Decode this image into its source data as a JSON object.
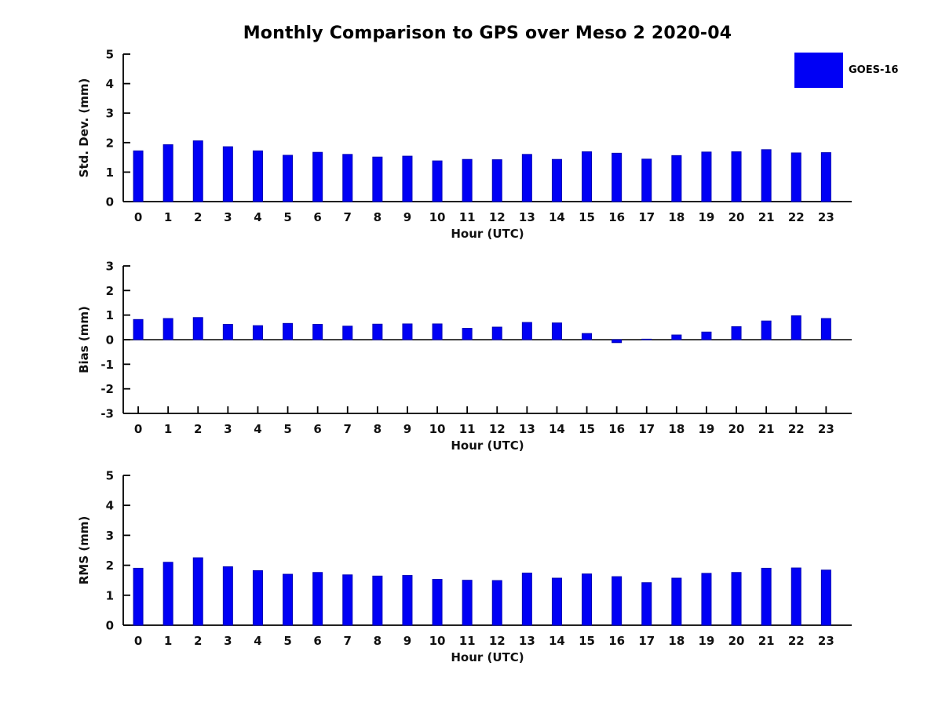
{
  "title": "Monthly Comparison to GPS over Meso 2 2020-04",
  "legend": {
    "label": "GOES-16",
    "swatch_name": "goes16-swatch"
  },
  "colors": {
    "bar_fill": "#0000F5",
    "bar_edge": "#0000B4",
    "axis": "#000000"
  },
  "chart_data": [
    {
      "type": "bar",
      "panel": "std-dev",
      "ylabel": "Std. Dev. (mm)",
      "xlabel": "Hour (UTC)",
      "series_name": "GOES-16",
      "categories": [
        "0",
        "1",
        "2",
        "3",
        "4",
        "5",
        "6",
        "7",
        "8",
        "9",
        "10",
        "11",
        "12",
        "13",
        "14",
        "15",
        "16",
        "17",
        "18",
        "19",
        "20",
        "21",
        "22",
        "23"
      ],
      "values": [
        1.72,
        1.93,
        2.06,
        1.86,
        1.72,
        1.57,
        1.67,
        1.6,
        1.51,
        1.54,
        1.38,
        1.43,
        1.42,
        1.6,
        1.43,
        1.69,
        1.64,
        1.44,
        1.56,
        1.68,
        1.69,
        1.76,
        1.65,
        1.66
      ],
      "ylim": [
        0,
        5
      ],
      "yticks": [
        0,
        1,
        2,
        3,
        4,
        5
      ],
      "grid": false,
      "legend_position": "upper-right-outside"
    },
    {
      "type": "bar",
      "panel": "bias",
      "ylabel": "Bias (mm)",
      "xlabel": "Hour (UTC)",
      "series_name": "GOES-16",
      "categories": [
        "0",
        "1",
        "2",
        "3",
        "4",
        "5",
        "6",
        "7",
        "8",
        "9",
        "10",
        "11",
        "12",
        "13",
        "14",
        "15",
        "16",
        "17",
        "18",
        "19",
        "20",
        "21",
        "22",
        "23"
      ],
      "values": [
        0.82,
        0.86,
        0.9,
        0.62,
        0.57,
        0.66,
        0.62,
        0.55,
        0.63,
        0.64,
        0.64,
        0.46,
        0.51,
        0.7,
        0.68,
        0.25,
        -0.12,
        0.02,
        0.19,
        0.31,
        0.53,
        0.76,
        0.97,
        0.86
      ],
      "ylim": [
        -3,
        3
      ],
      "yticks": [
        -3,
        -2,
        -1,
        0,
        1,
        2,
        3
      ],
      "grid": false,
      "legend_position": "none"
    },
    {
      "type": "bar",
      "panel": "rms",
      "ylabel": "RMS (mm)",
      "xlabel": "Hour (UTC)",
      "series_name": "GOES-16",
      "categories": [
        "0",
        "1",
        "2",
        "3",
        "4",
        "5",
        "6",
        "7",
        "8",
        "9",
        "10",
        "11",
        "12",
        "13",
        "14",
        "15",
        "16",
        "17",
        "18",
        "19",
        "20",
        "21",
        "22",
        "23"
      ],
      "values": [
        1.9,
        2.1,
        2.25,
        1.95,
        1.82,
        1.7,
        1.76,
        1.68,
        1.64,
        1.66,
        1.53,
        1.5,
        1.49,
        1.74,
        1.57,
        1.71,
        1.62,
        1.42,
        1.57,
        1.73,
        1.76,
        1.9,
        1.91,
        1.84
      ],
      "ylim": [
        0,
        5
      ],
      "yticks": [
        0,
        1,
        2,
        3,
        4,
        5
      ],
      "grid": false,
      "legend_position": "none"
    }
  ]
}
